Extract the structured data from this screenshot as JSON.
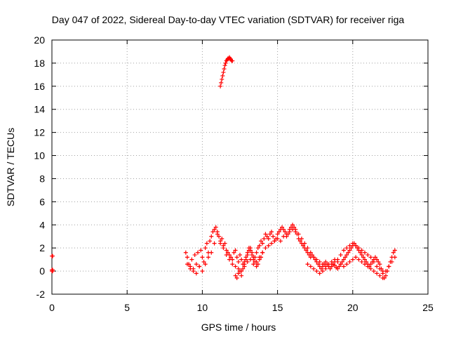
{
  "chart_data": {
    "type": "scatter",
    "title": "Day 047 of 2022, Sidereal Day-to-day VTEC variation (SDTVAR) for receiver riga",
    "xlabel": "GPS time / hours",
    "ylabel": "SDTVAR / TECUs",
    "xlim": [
      0,
      25
    ],
    "ylim": [
      -2,
      20
    ],
    "xticks": [
      "0",
      "5",
      "10",
      "15",
      "20",
      "25"
    ],
    "yticks": [
      "-2",
      "0",
      "2",
      "4",
      "6",
      "8",
      "10",
      "12",
      "14",
      "16",
      "18",
      "20"
    ],
    "grid": true,
    "marker": "plus",
    "color": "#ff0000",
    "series": [
      {
        "name": "SDTVAR",
        "x": [
          0.0,
          0.05,
          0.0,
          0.05,
          0.0,
          0.05,
          8.9,
          9.0,
          9.1,
          9.2,
          9.3,
          9.4,
          9.5,
          9.6,
          9.7,
          9.8,
          9.9,
          10.0,
          10.1,
          10.2,
          10.3,
          10.4,
          10.5,
          10.6,
          10.7,
          10.8,
          10.9,
          11.0,
          11.1,
          11.2,
          11.3,
          11.4,
          11.5,
          11.6,
          11.7,
          11.8,
          11.9,
          12.0,
          12.1,
          12.2,
          12.3,
          12.4,
          12.5,
          12.6,
          12.7,
          12.8,
          12.9,
          13.0,
          13.1,
          13.2,
          13.3,
          13.4,
          13.5,
          13.6,
          13.7,
          13.8,
          13.9,
          14.0,
          14.1,
          14.2,
          14.3,
          14.4,
          14.5,
          14.6,
          14.7,
          14.8,
          14.9,
          15.0,
          15.1,
          15.2,
          15.3,
          15.4,
          15.5,
          15.6,
          15.7,
          15.8,
          15.9,
          16.0,
          16.1,
          16.2,
          16.3,
          16.4,
          16.5,
          16.6,
          16.7,
          16.8,
          16.9,
          17.0,
          17.1,
          17.2,
          17.3,
          17.4,
          17.5,
          17.6,
          17.7,
          17.8,
          17.9,
          18.0,
          18.1,
          18.2,
          18.3,
          18.4,
          18.5,
          18.6,
          18.7,
          18.8,
          18.9,
          19.0,
          19.1,
          19.2,
          19.3,
          19.4,
          19.5,
          19.6,
          19.7,
          19.8,
          19.9,
          20.0,
          20.1,
          20.2,
          20.3,
          20.4,
          20.5,
          20.6,
          20.7,
          20.8,
          20.9,
          21.0,
          21.1,
          21.2,
          21.3,
          21.4,
          21.5,
          21.6,
          21.7,
          21.8,
          21.9,
          22.0,
          22.1,
          22.2,
          22.3,
          22.4,
          22.5,
          22.6,
          22.7,
          22.8,
          9.0,
          9.2,
          9.4,
          9.6,
          9.8,
          10.0,
          10.2,
          10.4,
          10.6,
          10.8,
          11.0,
          11.2,
          11.4,
          11.6,
          11.8,
          12.0,
          12.2,
          12.4,
          12.6,
          12.8,
          13.0,
          13.2,
          13.4,
          13.6,
          13.8,
          14.0,
          14.2,
          14.4,
          14.6,
          14.8,
          15.0,
          15.2,
          15.4,
          15.6,
          15.8,
          16.0,
          16.2,
          16.4,
          16.6,
          16.8,
          17.0,
          17.2,
          17.4,
          17.6,
          17.8,
          18.0,
          18.2,
          18.4,
          18.6,
          18.8,
          19.0,
          19.2,
          19.4,
          19.6,
          19.8,
          20.0,
          20.2,
          20.4,
          20.6,
          20.8,
          21.0,
          21.2,
          21.4,
          21.6,
          21.8,
          22.0,
          22.2,
          22.4,
          22.6,
          22.8,
          12.2,
          12.3,
          12.4,
          12.5,
          12.6,
          12.7,
          12.8,
          12.9,
          13.0,
          13.1,
          13.2,
          13.3,
          13.4,
          13.5,
          13.6,
          13.7,
          13.8,
          13.9,
          14.0,
          17.0,
          17.2,
          17.4,
          17.6,
          17.8,
          18.0,
          18.2,
          18.4,
          18.6,
          18.8,
          19.0,
          19.2,
          19.4,
          19.6,
          19.8,
          20.0,
          20.2,
          20.4,
          20.6,
          20.8,
          21.0,
          21.2,
          21.4,
          21.6,
          21.8,
          22.0,
          11.2,
          11.25,
          11.3,
          11.35,
          11.4,
          11.45,
          11.5,
          11.55,
          11.6,
          11.65,
          11.7,
          11.75,
          11.8,
          11.85,
          11.9,
          11.95,
          12.0
        ],
        "y": [
          1.3,
          1.3,
          0.1,
          0.1,
          0.0,
          0.0,
          1.6,
          1.2,
          0.6,
          0.4,
          1.0,
          0.2,
          1.4,
          0.6,
          1.6,
          0.4,
          1.8,
          1.2,
          0.8,
          2.0,
          2.4,
          1.6,
          2.6,
          3.0,
          3.4,
          3.6,
          3.8,
          3.4,
          3.0,
          2.6,
          2.8,
          2.2,
          2.4,
          1.8,
          1.6,
          1.4,
          1.2,
          1.0,
          1.6,
          1.8,
          1.2,
          0.8,
          1.4,
          1.0,
          0.6,
          0.8,
          1.2,
          1.6,
          2.0,
          1.8,
          1.4,
          1.0,
          1.2,
          1.6,
          2.0,
          2.2,
          2.6,
          2.4,
          2.8,
          3.2,
          3.0,
          2.8,
          3.2,
          3.4,
          3.0,
          2.6,
          2.8,
          3.2,
          3.4,
          3.6,
          3.8,
          3.6,
          3.4,
          3.0,
          3.2,
          3.6,
          3.8,
          4.0,
          3.8,
          3.6,
          3.2,
          2.8,
          2.6,
          2.4,
          2.2,
          2.0,
          1.8,
          1.6,
          1.4,
          1.2,
          1.4,
          1.2,
          1.0,
          0.8,
          0.6,
          0.4,
          0.2,
          0.4,
          0.6,
          0.8,
          0.6,
          0.4,
          0.2,
          0.4,
          0.6,
          0.5,
          0.3,
          0.2,
          0.4,
          0.6,
          0.8,
          1.0,
          1.2,
          1.4,
          1.6,
          1.8,
          2.0,
          2.2,
          2.4,
          2.2,
          2.0,
          1.8,
          1.6,
          1.4,
          1.2,
          1.0,
          0.8,
          0.6,
          0.4,
          0.6,
          0.8,
          1.0,
          1.2,
          1.0,
          0.8,
          0.6,
          0.2,
          -0.2,
          -0.6,
          -0.4,
          0.0,
          0.4,
          0.8,
          1.2,
          1.6,
          1.8,
          0.6,
          0.2,
          0.0,
          -0.2,
          0.4,
          0.0,
          0.6,
          1.2,
          1.6,
          2.4,
          3.2,
          2.4,
          2.0,
          1.4,
          1.0,
          0.6,
          0.4,
          0.2,
          0.0,
          0.4,
          0.8,
          1.0,
          0.6,
          0.8,
          1.2,
          1.6,
          2.0,
          2.2,
          2.4,
          2.6,
          2.8,
          2.6,
          3.0,
          3.2,
          3.4,
          3.6,
          3.4,
          3.2,
          2.8,
          2.4,
          2.0,
          1.6,
          1.2,
          1.0,
          0.8,
          0.6,
          0.4,
          0.6,
          0.8,
          1.0,
          0.8,
          0.6,
          0.4,
          0.6,
          0.8,
          1.0,
          1.2,
          1.0,
          0.8,
          0.6,
          0.4,
          0.2,
          0.0,
          -0.2,
          -0.4,
          -0.6,
          0.0,
          0.4,
          0.8,
          1.2,
          -0.4,
          -0.6,
          -0.2,
          0.0,
          -0.4,
          0.2,
          0.6,
          1.0,
          1.4,
          1.8,
          2.0,
          1.6,
          1.2,
          0.8,
          0.4,
          0.6,
          1.0,
          1.2,
          1.6,
          0.6,
          0.4,
          0.2,
          0.0,
          -0.2,
          0.0,
          0.2,
          0.4,
          0.6,
          0.8,
          1.0,
          1.4,
          1.8,
          2.0,
          2.2,
          2.4,
          2.2,
          2.0,
          1.8,
          1.6,
          1.4,
          1.2,
          0.8,
          0.4,
          0.2,
          0.0,
          16.0,
          16.3,
          16.6,
          16.9,
          17.2,
          17.5,
          17.8,
          18.0,
          18.2,
          18.3,
          18.4,
          18.4,
          18.5,
          18.4,
          18.3,
          18.2,
          18.2
        ]
      }
    ]
  }
}
